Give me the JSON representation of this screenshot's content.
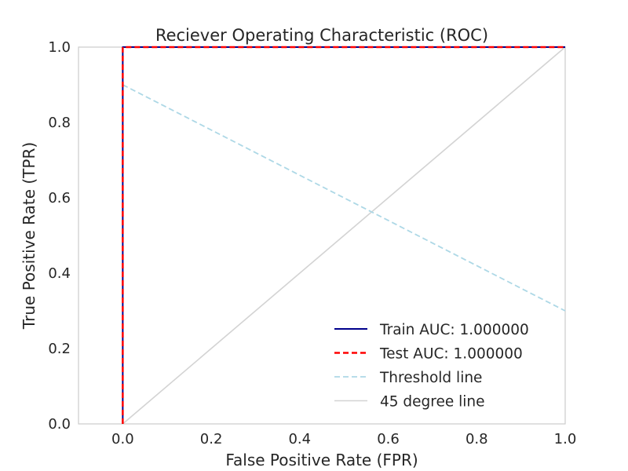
{
  "chart_data": {
    "type": "line",
    "title": "Reciever Operating Characteristic (ROC)",
    "xlabel": "False Positive Rate (FPR)",
    "ylabel": "True Positive Rate (TPR)",
    "xlim": [
      -0.1,
      1.0
    ],
    "ylim": [
      0.0,
      1.0
    ],
    "x_ticks": [
      0.0,
      0.2,
      0.4,
      0.6,
      0.8,
      1.0
    ],
    "x_tick_labels": [
      "0.0",
      "0.2",
      "0.4",
      "0.6",
      "0.8",
      "1.0"
    ],
    "y_ticks": [
      0.0,
      0.2,
      0.4,
      0.6,
      0.8,
      1.0
    ],
    "y_tick_labels": [
      "0.0",
      "0.2",
      "0.4",
      "0.6",
      "0.8",
      "1.0"
    ],
    "grid": false,
    "legend_position": "bottom-right",
    "series": [
      {
        "name": "Train AUC: 1.000000",
        "color": "#00008b",
        "style": "solid",
        "x": [
          0.0,
          0.0,
          1.0
        ],
        "y": [
          0.0,
          1.0,
          1.0
        ]
      },
      {
        "name": "Test AUC: 1.000000",
        "color": "#ff0000",
        "style": "dashed",
        "x": [
          0.0,
          0.0,
          1.0
        ],
        "y": [
          0.0,
          1.0,
          1.0
        ]
      },
      {
        "name": "Threshold line",
        "color": "#add8e6",
        "style": "dashed",
        "x": [
          0.0,
          1.0
        ],
        "y": [
          0.9,
          0.3
        ]
      },
      {
        "name": "45 degree line",
        "color": "#d3d3d3",
        "style": "solid",
        "x": [
          0.0,
          1.0
        ],
        "y": [
          0.0,
          1.0
        ]
      }
    ]
  }
}
